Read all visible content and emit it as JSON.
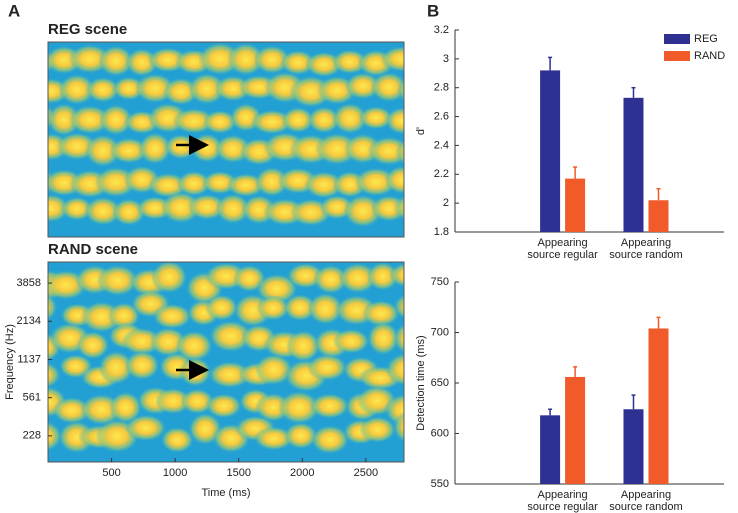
{
  "panel_labels": [
    "A",
    "B"
  ],
  "chart_data": [
    {
      "type": "spectrogram",
      "title": "REG scene"
    },
    {
      "type": "spectrogram",
      "title": "RAND scene",
      "xlabel": "Time (ms)",
      "ylabel": "Frequency (Hz)",
      "xlim": [
        0,
        2800
      ],
      "xticks": [
        500,
        1000,
        1500,
        2000,
        2500
      ],
      "yscale": "erb",
      "ylim": [
        85,
        5300
      ],
      "yticks": [
        228,
        561,
        1137,
        2134,
        3858
      ]
    },
    {
      "type": "bar",
      "ylabel": "d'",
      "categories": [
        [
          "Appearing",
          "source regular"
        ],
        [
          "Appearing",
          "source random"
        ]
      ],
      "series": [
        {
          "name": "REG",
          "color": "#2e3192",
          "values": [
            2.92,
            2.73
          ],
          "errors": [
            0.09,
            0.07
          ]
        },
        {
          "name": "RAND",
          "color": "#f15a29",
          "values": [
            2.17,
            2.02
          ],
          "errors": [
            0.08,
            0.08
          ]
        }
      ],
      "ylim": [
        1.8,
        3.2
      ],
      "yticks": [
        1.8,
        2,
        2.2,
        2.4,
        2.6,
        2.8,
        3,
        3.2
      ],
      "legend": "upper right"
    },
    {
      "type": "bar",
      "ylabel": "Detection time (ms)",
      "categories": [
        [
          "Appearing",
          "source regular"
        ],
        [
          "Appearing",
          "source random"
        ]
      ],
      "series": [
        {
          "name": "REG",
          "color": "#2e3192",
          "values": [
            618,
            624
          ],
          "errors": [
            6,
            14
          ]
        },
        {
          "name": "RAND",
          "color": "#f15a29",
          "values": [
            656,
            704
          ],
          "errors": [
            10,
            11
          ]
        }
      ],
      "ylim": [
        550,
        750
      ],
      "yticks": [
        550,
        600,
        650,
        700,
        750
      ]
    }
  ]
}
